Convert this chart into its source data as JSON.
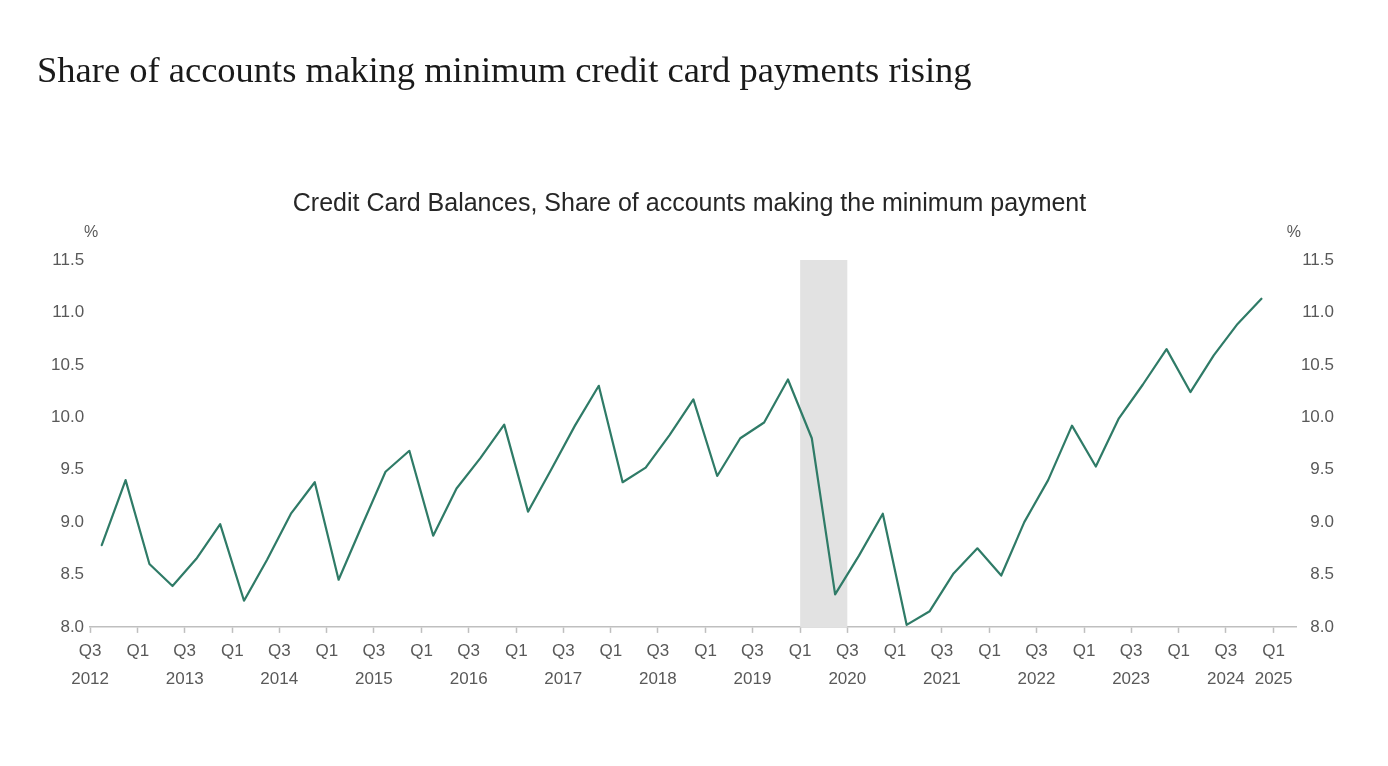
{
  "chart_data": {
    "type": "line",
    "title": "Share of accounts making minimum credit card payments rising",
    "subtitle": "Credit Card Balances, Share of accounts making the minimum payment",
    "ylabel": "%",
    "y2label": "%",
    "x": [
      "2012-08-15",
      "2012-11-15",
      "2013-02-15",
      "2013-05-15",
      "2013-08-15",
      "2013-11-15",
      "2014-02-15",
      "2014-05-15",
      "2014-08-15",
      "2014-11-15",
      "2015-02-15",
      "2015-05-15",
      "2015-08-15",
      "2015-11-15",
      "2016-02-15",
      "2016-05-15",
      "2016-08-15",
      "2016-11-15",
      "2017-02-15",
      "2017-05-15",
      "2017-08-15",
      "2017-11-15",
      "2018-02-15",
      "2018-05-15",
      "2018-08-15",
      "2018-11-15",
      "2019-02-15",
      "2019-05-15",
      "2019-08-15",
      "2019-11-15",
      "2020-02-15",
      "2020-05-15",
      "2020-08-15",
      "2020-11-15",
      "2021-02-15",
      "2021-05-15",
      "2021-08-15",
      "2021-11-15",
      "2022-02-15",
      "2022-05-15",
      "2022-08-15",
      "2022-11-15",
      "2023-02-15",
      "2023-05-15",
      "2023-08-15",
      "2023-11-15",
      "2024-02-15",
      "2024-05-15",
      "2024-08-15",
      "2024-11-15"
    ],
    "values": [
      8.78,
      9.4,
      8.6,
      8.39,
      8.65,
      8.98,
      8.25,
      8.64,
      9.08,
      9.38,
      8.45,
      8.96,
      9.48,
      9.68,
      8.87,
      9.32,
      9.61,
      9.93,
      9.1,
      9.5,
      9.92,
      10.3,
      9.38,
      9.52,
      9.83,
      10.17,
      9.44,
      9.8,
      9.95,
      10.36,
      9.8,
      8.31,
      8.68,
      9.08,
      8.02,
      8.15,
      8.51,
      8.75,
      8.49,
      9.0,
      9.4,
      9.92,
      9.53,
      9.99,
      10.31,
      10.65,
      10.24,
      10.59,
      10.89,
      11.13
    ],
    "color": "#2f7b67",
    "marker": "none",
    "line_style": "solid",
    "grid": false,
    "xlim": [
      "2012-07",
      "2025-04"
    ],
    "xticks": [
      {
        "value": "2012-07",
        "label": "Q3\n2012"
      },
      {
        "value": "2013-01",
        "label": "Q1"
      },
      {
        "value": "2013-07",
        "label": "Q3\n2013"
      },
      {
        "value": "2014-01",
        "label": "Q1"
      },
      {
        "value": "2014-07",
        "label": "Q3\n2014"
      },
      {
        "value": "2015-01",
        "label": "Q1"
      },
      {
        "value": "2015-07",
        "label": "Q3\n2015"
      },
      {
        "value": "2016-01",
        "label": "Q1"
      },
      {
        "value": "2016-07",
        "label": "Q3\n2016"
      },
      {
        "value": "2017-01",
        "label": "Q1"
      },
      {
        "value": "2017-07",
        "label": "Q3\n2017"
      },
      {
        "value": "2018-01",
        "label": "Q1"
      },
      {
        "value": "2018-07",
        "label": "Q3\n2018"
      },
      {
        "value": "2019-01",
        "label": "Q1"
      },
      {
        "value": "2019-07",
        "label": "Q3\n2019"
      },
      {
        "value": "2020-01",
        "label": "Q1"
      },
      {
        "value": "2020-07",
        "label": "Q3\n2020"
      },
      {
        "value": "2021-01",
        "label": "Q1"
      },
      {
        "value": "2021-07",
        "label": "Q3\n2021"
      },
      {
        "value": "2022-01",
        "label": "Q1"
      },
      {
        "value": "2022-07",
        "label": "Q3\n2022"
      },
      {
        "value": "2023-01",
        "label": "Q1"
      },
      {
        "value": "2023-07",
        "label": "Q3\n2023"
      },
      {
        "value": "2024-01",
        "label": "Q1"
      },
      {
        "value": "2024-07",
        "label": "Q3\n2024"
      },
      {
        "value": "2025-01",
        "label": "Q1\n2025"
      }
    ],
    "ylim": [
      8,
      11.5
    ],
    "yticks": [
      {
        "value": 8,
        "label": "8.0"
      },
      8.5,
      {
        "value": 9,
        "label": "9.0"
      },
      9.5,
      {
        "value": 10,
        "label": "10.0"
      },
      10.5,
      {
        "value": 11,
        "label": "11.0"
      },
      11.5
    ],
    "y2lim": [
      8,
      11.5
    ],
    "y2ticks": [
      {
        "value": 8,
        "label": "8.0"
      },
      8.5,
      {
        "value": 9,
        "label": "9.0"
      },
      9.5,
      {
        "value": 10,
        "label": "10.0"
      },
      10.5,
      {
        "value": 11,
        "label": "11.0"
      },
      11.5
    ],
    "bands": [
      {
        "axis": "x",
        "from": "2020-01",
        "to": "2020-07",
        "color": "#e2e2e2"
      }
    ]
  }
}
